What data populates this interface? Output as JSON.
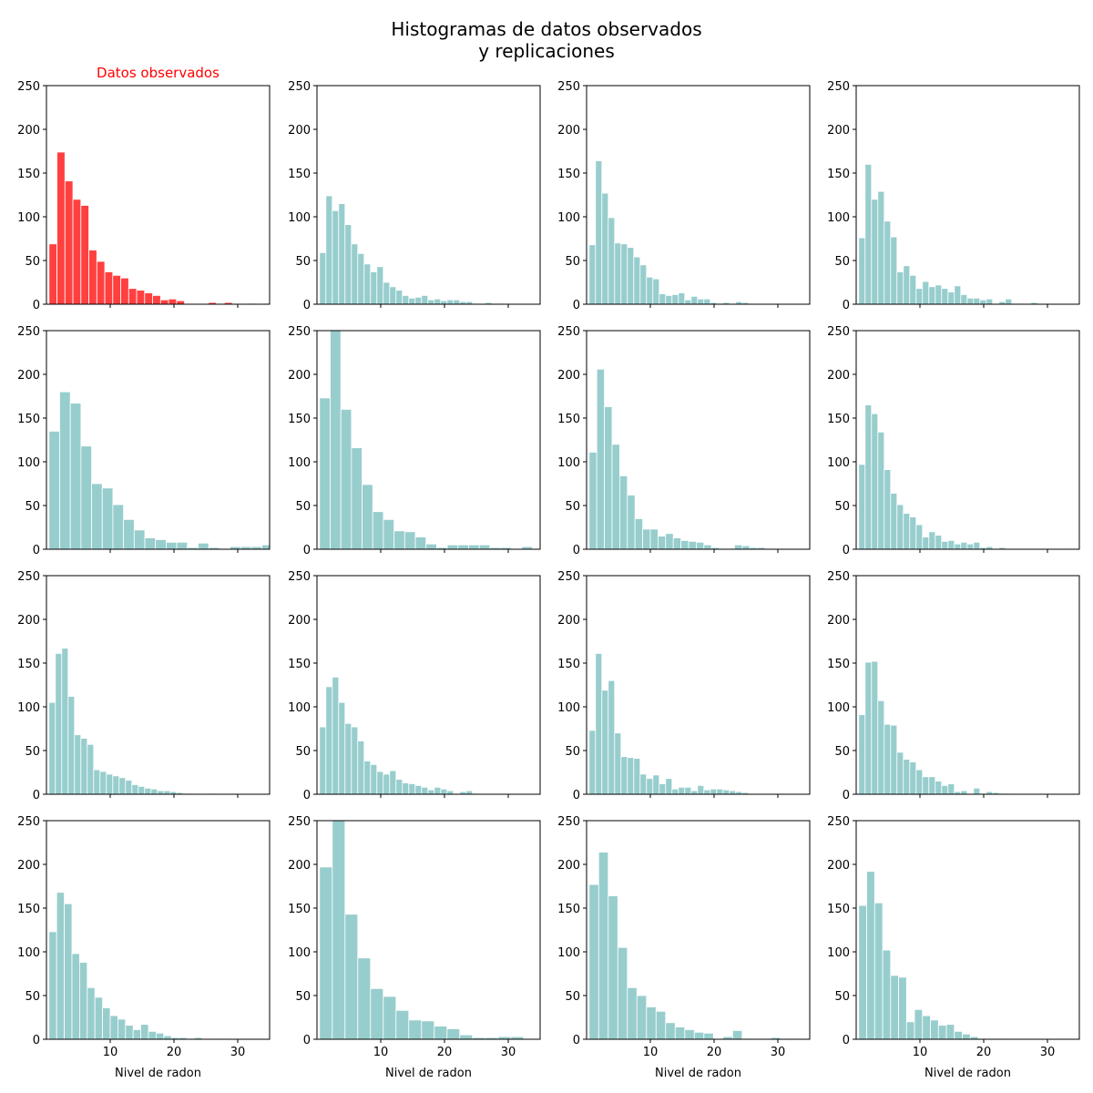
{
  "figure": {
    "title_line1": "Histogramas de datos observados",
    "title_line2": "y replicaciones"
  },
  "colors": {
    "observed": "#ff4040",
    "replicate": "#98cdcd",
    "observed_title": "#ff0000",
    "bar_edge": "#ffffff"
  },
  "chart_data": {
    "type": "bar",
    "layout": "4x4 grid of histograms",
    "xlabel": "Nivel de radon",
    "ylabel": "",
    "xlim": [
      0,
      35
    ],
    "ylim": [
      0,
      250
    ],
    "xticks": [
      10,
      20,
      30
    ],
    "yticks": [
      0,
      50,
      100,
      150,
      200,
      250
    ],
    "panels": [
      {
        "title": "Datos observados",
        "kind": "observed",
        "show_xlabel": false,
        "bin_width": 1.25,
        "counts": [
          69,
          174,
          141,
          120,
          113,
          62,
          49,
          37,
          33,
          30,
          18,
          16,
          13,
          10,
          5,
          6,
          4,
          0,
          0,
          0,
          2,
          0,
          2,
          0,
          0,
          1,
          0,
          1,
          0,
          0,
          0,
          0,
          0,
          0,
          1
        ]
      },
      {
        "title": "",
        "kind": "replicate",
        "show_xlabel": false,
        "bin_width": 1.0,
        "counts": [
          59,
          124,
          107,
          115,
          91,
          69,
          58,
          46,
          37,
          43,
          25,
          20,
          16,
          10,
          7,
          8,
          10,
          5,
          6,
          4,
          5,
          5,
          3,
          3,
          1,
          0,
          2,
          0,
          1
        ]
      },
      {
        "title": "",
        "kind": "replicate",
        "show_xlabel": false,
        "bin_width": 1.0,
        "counts": [
          68,
          164,
          127,
          99,
          70,
          69,
          65,
          54,
          45,
          31,
          29,
          12,
          10,
          11,
          13,
          5,
          9,
          6,
          6,
          2,
          1,
          2,
          0,
          3,
          2
        ]
      },
      {
        "title": "",
        "kind": "replicate",
        "show_xlabel": false,
        "bin_width": 1.0,
        "counts": [
          76,
          160,
          120,
          129,
          95,
          77,
          37,
          44,
          33,
          18,
          26,
          20,
          22,
          18,
          14,
          21,
          11,
          7,
          7,
          5,
          6,
          0,
          3,
          6,
          1,
          1,
          0,
          2,
          0,
          0,
          0,
          0,
          0,
          0,
          0,
          1
        ]
      },
      {
        "title": "",
        "kind": "replicate",
        "show_xlabel": false,
        "bin_width": 1.67,
        "counts": [
          135,
          180,
          167,
          118,
          75,
          70,
          51,
          34,
          22,
          13,
          11,
          8,
          8,
          2,
          7,
          2,
          1,
          3,
          3,
          3,
          5,
          3,
          1
        ]
      },
      {
        "title": "",
        "kind": "replicate",
        "show_xlabel": false,
        "bin_width": 1.67,
        "counts": [
          173,
          250,
          160,
          116,
          74,
          43,
          34,
          21,
          20,
          14,
          6,
          2,
          5,
          5,
          5,
          5,
          2,
          2,
          0,
          3,
          0,
          3
        ]
      },
      {
        "title": "",
        "kind": "replicate",
        "show_xlabel": false,
        "bin_width": 1.2,
        "counts": [
          111,
          206,
          163,
          120,
          84,
          62,
          35,
          23,
          23,
          15,
          18,
          13,
          10,
          9,
          8,
          5,
          2,
          1,
          1,
          5,
          4,
          2,
          2,
          1,
          0,
          1
        ]
      },
      {
        "title": "",
        "kind": "replicate",
        "show_xlabel": false,
        "bin_width": 1.0,
        "counts": [
          97,
          165,
          155,
          134,
          91,
          64,
          51,
          41,
          37,
          28,
          14,
          20,
          16,
          9,
          10,
          6,
          8,
          6,
          8,
          2,
          3,
          0,
          2,
          0,
          0,
          0,
          0,
          0,
          0,
          0,
          0,
          0,
          1
        ]
      },
      {
        "title": "",
        "kind": "replicate",
        "show_xlabel": false,
        "bin_width": 1.0,
        "counts": [
          105,
          161,
          167,
          112,
          68,
          64,
          57,
          28,
          26,
          23,
          21,
          19,
          16,
          11,
          9,
          7,
          6,
          4,
          4,
          3,
          2,
          1,
          1,
          0,
          0,
          1
        ]
      },
      {
        "title": "",
        "kind": "replicate",
        "show_xlabel": false,
        "bin_width": 1.0,
        "counts": [
          77,
          123,
          134,
          105,
          81,
          77,
          61,
          38,
          34,
          26,
          23,
          27,
          17,
          13,
          12,
          10,
          8,
          5,
          8,
          6,
          4,
          1,
          3,
          4,
          1
        ]
      },
      {
        "title": "",
        "kind": "replicate",
        "show_xlabel": false,
        "bin_width": 1.0,
        "counts": [
          73,
          161,
          119,
          130,
          70,
          43,
          42,
          41,
          23,
          18,
          22,
          12,
          18,
          6,
          8,
          8,
          4,
          10,
          5,
          6,
          6,
          5,
          4,
          3,
          2
        ]
      },
      {
        "title": "",
        "kind": "replicate",
        "show_xlabel": false,
        "bin_width": 1.0,
        "counts": [
          91,
          151,
          152,
          107,
          80,
          79,
          48,
          40,
          37,
          28,
          20,
          20,
          15,
          10,
          12,
          3,
          4,
          0,
          7,
          1,
          3,
          2,
          1,
          1
        ]
      },
      {
        "title": "",
        "kind": "replicate",
        "show_xlabel": true,
        "bin_width": 1.2,
        "counts": [
          123,
          168,
          155,
          98,
          88,
          59,
          48,
          36,
          27,
          23,
          16,
          11,
          17,
          9,
          7,
          4,
          2,
          2,
          1,
          2,
          0,
          0,
          1
        ]
      },
      {
        "title": "",
        "kind": "replicate",
        "show_xlabel": true,
        "bin_width": 2.0,
        "counts": [
          197,
          250,
          143,
          93,
          58,
          49,
          33,
          22,
          21,
          15,
          12,
          5,
          2,
          2,
          3,
          3,
          0
        ]
      },
      {
        "title": "",
        "kind": "replicate",
        "show_xlabel": true,
        "bin_width": 1.5,
        "counts": [
          177,
          214,
          164,
          105,
          59,
          50,
          37,
          32,
          19,
          14,
          11,
          8,
          7,
          0,
          3,
          10,
          1,
          0,
          0,
          2
        ]
      },
      {
        "title": "",
        "kind": "replicate",
        "show_xlabel": true,
        "bin_width": 1.25,
        "counts": [
          153,
          192,
          156,
          102,
          73,
          71,
          20,
          34,
          27,
          22,
          16,
          17,
          9,
          6,
          3,
          1,
          1,
          1,
          1,
          0,
          1,
          0,
          1
        ]
      }
    ]
  }
}
